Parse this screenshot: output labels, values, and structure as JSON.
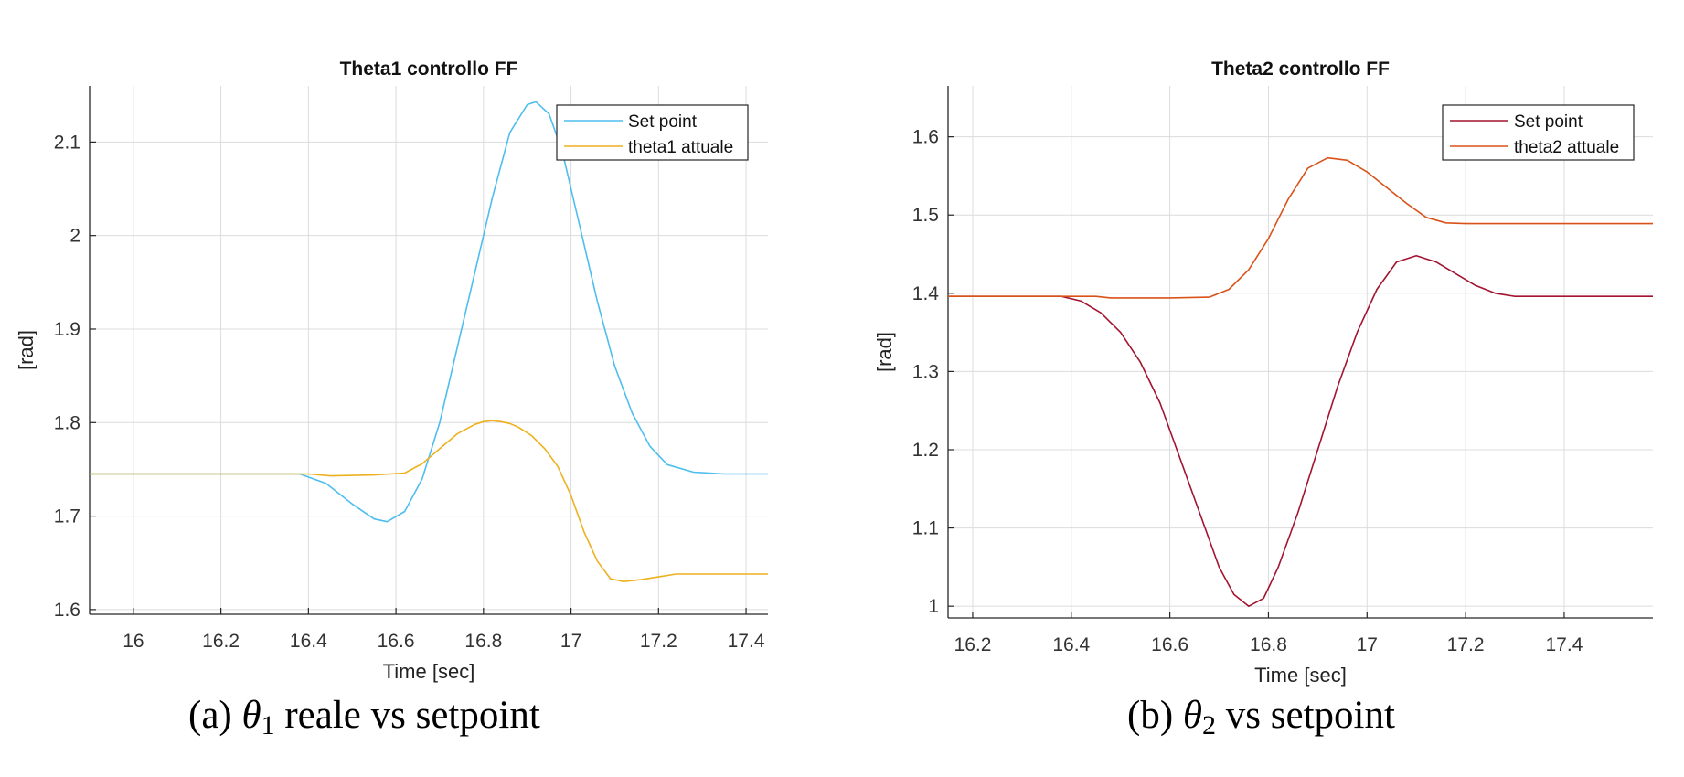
{
  "chart_data": [
    {
      "type": "line",
      "title": "Theta1 controllo FF",
      "xlabel": "Time [sec]",
      "ylabel": "[rad]",
      "xlim": [
        15.9,
        17.45
      ],
      "ylim": [
        1.595,
        2.16
      ],
      "xticks": [
        16,
        16.2,
        16.4,
        16.6,
        16.8,
        17,
        17.2,
        17.4
      ],
      "xtick_labels": [
        "16",
        "16.2",
        "16.4",
        "16.6",
        "16.8",
        "17",
        "17.2",
        "17.4"
      ],
      "yticks": [
        1.6,
        1.7,
        1.8,
        1.9,
        2.0,
        2.1
      ],
      "ytick_labels": [
        "1.6",
        "1.7",
        "1.8",
        "1.9",
        "2",
        "2.1"
      ],
      "grid": true,
      "legend_position": "top-right",
      "series": [
        {
          "name": "Set point",
          "color": "#4dbeee",
          "x": [
            15.9,
            16.38,
            16.44,
            16.5,
            16.55,
            16.58,
            16.62,
            16.66,
            16.7,
            16.74,
            16.78,
            16.82,
            16.86,
            16.9,
            16.92,
            16.95,
            16.98,
            17.02,
            17.06,
            17.1,
            17.14,
            17.18,
            17.22,
            17.28,
            17.35,
            17.45
          ],
          "y": [
            1.745,
            1.745,
            1.735,
            1.713,
            1.697,
            1.694,
            1.705,
            1.74,
            1.8,
            1.88,
            1.96,
            2.04,
            2.11,
            2.14,
            2.143,
            2.13,
            2.09,
            2.01,
            1.93,
            1.86,
            1.81,
            1.775,
            1.755,
            1.747,
            1.745,
            1.745
          ]
        },
        {
          "name": "theta1 attuale",
          "color": "#edb120",
          "x": [
            15.9,
            16.4,
            16.45,
            16.55,
            16.62,
            16.66,
            16.7,
            16.74,
            16.78,
            16.8,
            16.82,
            16.84,
            16.86,
            16.88,
            16.91,
            16.94,
            16.97,
            17.0,
            17.03,
            17.06,
            17.09,
            17.12,
            17.16,
            17.2,
            17.24,
            17.3,
            17.45
          ],
          "y": [
            1.745,
            1.745,
            1.743,
            1.744,
            1.746,
            1.756,
            1.772,
            1.788,
            1.798,
            1.801,
            1.802,
            1.801,
            1.799,
            1.795,
            1.786,
            1.772,
            1.753,
            1.722,
            1.683,
            1.652,
            1.633,
            1.63,
            1.632,
            1.635,
            1.638,
            1.638,
            1.638
          ]
        }
      ]
    },
    {
      "type": "line",
      "title": "Theta2 controllo FF",
      "xlabel": "Time [sec]",
      "ylabel": "[rad]",
      "xlim": [
        16.15,
        17.58
      ],
      "ylim": [
        0.985,
        1.665
      ],
      "xticks": [
        16.2,
        16.4,
        16.6,
        16.8,
        17,
        17.2,
        17.4
      ],
      "xtick_labels": [
        "16.2",
        "16.4",
        "16.6",
        "16.8",
        "17",
        "17.2",
        "17.4"
      ],
      "yticks": [
        1.0,
        1.1,
        1.2,
        1.3,
        1.4,
        1.5,
        1.6
      ],
      "ytick_labels": [
        "1",
        "1.1",
        "1.2",
        "1.3",
        "1.4",
        "1.5",
        "1.6"
      ],
      "grid": true,
      "legend_position": "top-right",
      "series": [
        {
          "name": "Set point",
          "color": "#a2142f",
          "x": [
            16.15,
            16.38,
            16.42,
            16.46,
            16.5,
            16.54,
            16.58,
            16.62,
            16.66,
            16.7,
            16.73,
            16.76,
            16.79,
            16.82,
            16.86,
            16.9,
            16.94,
            16.98,
            17.02,
            17.06,
            17.1,
            17.14,
            17.18,
            17.22,
            17.26,
            17.3,
            17.58
          ],
          "y": [
            1.396,
            1.396,
            1.39,
            1.375,
            1.35,
            1.312,
            1.26,
            1.19,
            1.12,
            1.05,
            1.015,
            1.0,
            1.01,
            1.05,
            1.12,
            1.2,
            1.28,
            1.35,
            1.405,
            1.44,
            1.448,
            1.44,
            1.425,
            1.41,
            1.4,
            1.396,
            1.396
          ]
        },
        {
          "name": "theta2 attuale",
          "color": "#d95319",
          "x": [
            16.15,
            16.45,
            16.48,
            16.6,
            16.68,
            16.72,
            16.76,
            16.8,
            16.84,
            16.88,
            16.92,
            16.96,
            17.0,
            17.04,
            17.08,
            17.12,
            17.16,
            17.2,
            17.26,
            17.3,
            17.58
          ],
          "y": [
            1.396,
            1.396,
            1.394,
            1.394,
            1.395,
            1.405,
            1.43,
            1.47,
            1.52,
            1.56,
            1.573,
            1.57,
            1.555,
            1.535,
            1.515,
            1.497,
            1.49,
            1.489,
            1.489,
            1.489,
            1.489
          ]
        }
      ]
    }
  ],
  "captions": [
    {
      "label": "(a) ",
      "symbol": "θ",
      "sub": "1",
      "rest": " reale vs setpoint"
    },
    {
      "label": "(b) ",
      "symbol": "θ",
      "sub": "2",
      "rest": " vs setpoint"
    }
  ]
}
